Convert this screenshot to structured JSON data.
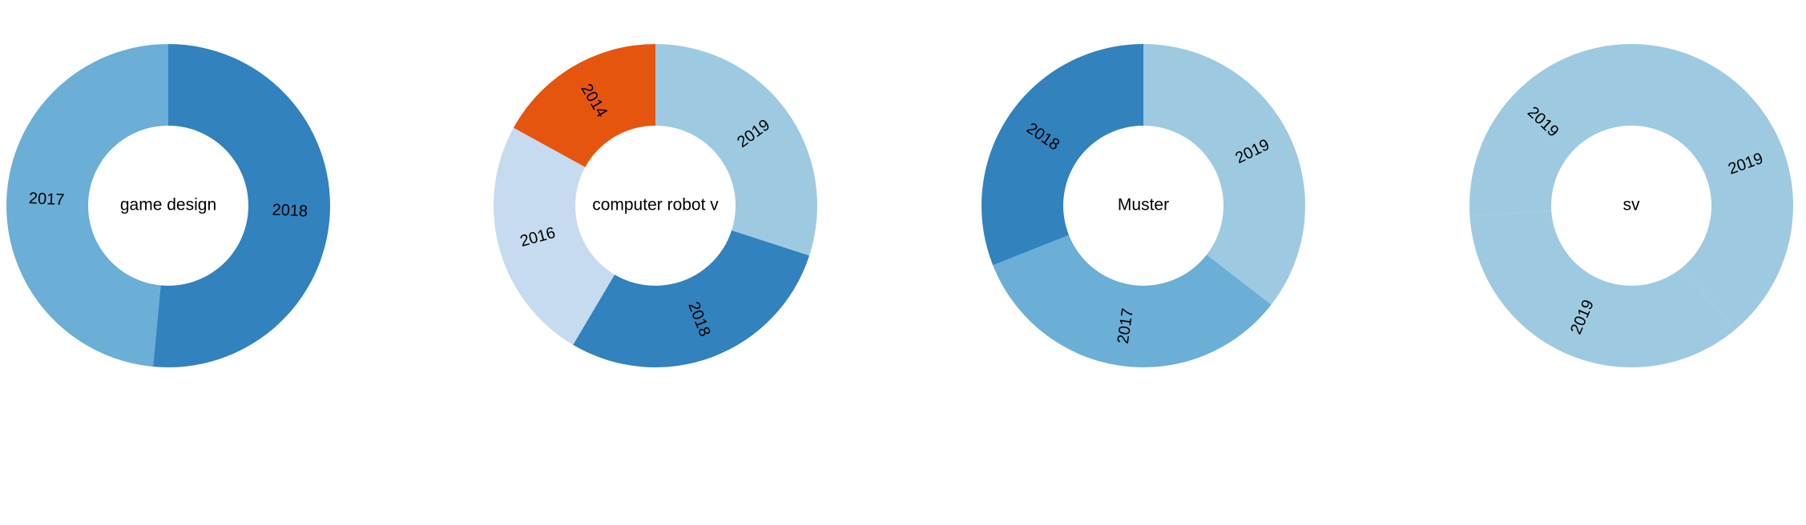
{
  "chart_data": [
    {
      "type": "pie",
      "donut": true,
      "center_label": "game design",
      "slices": [
        {
          "label": "2018",
          "value": 51.5,
          "color": "#3182bd"
        },
        {
          "label": "2017",
          "value": 48.5,
          "color": "#6baed6"
        }
      ]
    },
    {
      "type": "pie",
      "donut": true,
      "center_label": "computer robot v",
      "slices": [
        {
          "label": "2019",
          "value": 30.0,
          "color": "#9ecae1"
        },
        {
          "label": "2018",
          "value": 28.5,
          "color": "#3182bd"
        },
        {
          "label": "2016",
          "value": 24.5,
          "color": "#c6dbef"
        },
        {
          "label": "2014",
          "value": 17.0,
          "color": "#e6550d"
        }
      ]
    },
    {
      "type": "pie",
      "donut": true,
      "center_label": "Muster",
      "slices": [
        {
          "label": "2019",
          "value": 35.5,
          "color": "#9ecae1"
        },
        {
          "label": "2017",
          "value": 33.5,
          "color": "#6baed6"
        },
        {
          "label": "2018",
          "value": 31.0,
          "color": "#3182bd"
        }
      ]
    },
    {
      "type": "pie",
      "donut": true,
      "center_label": "sv",
      "slices": [
        {
          "label": "2019",
          "value": 39.0,
          "color": "#9ecae1"
        },
        {
          "label": "2019",
          "value": 35.0,
          "color": "#9ecae1"
        },
        {
          "label": "2019",
          "value": 26.0,
          "color": "#9ecae1"
        }
      ]
    }
  ]
}
